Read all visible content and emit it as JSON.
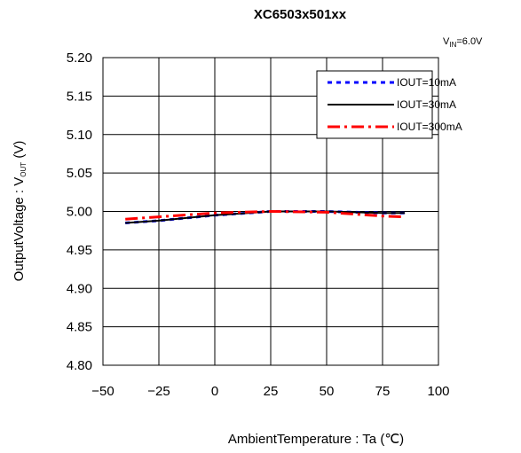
{
  "chart_data": {
    "type": "line",
    "title": "XC6503x501xx",
    "annotation": {
      "main": "V",
      "sub": "IN",
      "rest": "=6.0V"
    },
    "xlabel": "AmbientTemperature : Ta (℃)",
    "ylabel": {
      "main": "OutputVoltage : V",
      "sub": "OUT",
      "rest": " (V)"
    },
    "xlim": [
      -50,
      100
    ],
    "ylim": [
      4.8,
      5.2
    ],
    "x_ticks": [
      -50,
      -25,
      0,
      25,
      50,
      75,
      100
    ],
    "x_tick_labels": [
      "−50",
      "−25",
      "0",
      "25",
      "50",
      "75",
      "100"
    ],
    "y_ticks": [
      4.8,
      4.85,
      4.9,
      4.95,
      5.0,
      5.05,
      5.1,
      5.15,
      5.2
    ],
    "y_tick_labels": [
      "4.80",
      "4.85",
      "4.90",
      "4.95",
      "5.00",
      "5.05",
      "5.10",
      "5.15",
      "5.20"
    ],
    "grid": true,
    "legend_position": "top-right",
    "series": [
      {
        "name": "IOUT=10mA",
        "color": "#0000ff",
        "style": "dotted",
        "x": [
          -40,
          -25,
          0,
          25,
          50,
          75,
          85
        ],
        "y": [
          4.985,
          4.988,
          4.995,
          5.0,
          5.0,
          4.998,
          4.998
        ]
      },
      {
        "name": "IOUT=30mA",
        "color": "#000000",
        "style": "solid",
        "x": [
          -40,
          -25,
          0,
          25,
          50,
          75,
          85
        ],
        "y": [
          4.985,
          4.988,
          4.995,
          5.0,
          5.0,
          4.998,
          4.998
        ]
      },
      {
        "name": "IOUT=300mA",
        "color": "#ff0000",
        "style": "dashdot",
        "x": [
          -40,
          -25,
          0,
          25,
          50,
          75,
          85
        ],
        "y": [
          4.99,
          4.993,
          4.998,
          5.0,
          4.999,
          4.994,
          4.993
        ]
      }
    ]
  }
}
